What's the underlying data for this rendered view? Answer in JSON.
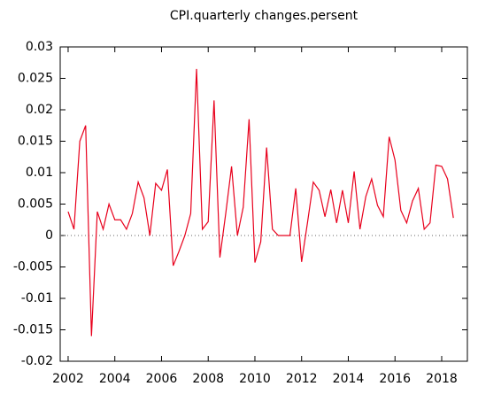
{
  "chart_data": {
    "type": "line",
    "title": "CPI.quarterly changes.persent",
    "x": [
      2002,
      2002.25,
      2002.5,
      2002.75,
      2003,
      2003.25,
      2003.5,
      2003.75,
      2004,
      2004.25,
      2004.5,
      2004.75,
      2005,
      2005.25,
      2005.5,
      2005.75,
      2006,
      2006.25,
      2006.5,
      2006.75,
      2007,
      2007.25,
      2007.5,
      2007.75,
      2008,
      2008.25,
      2008.5,
      2008.75,
      2009,
      2009.25,
      2009.5,
      2009.75,
      2010,
      2010.25,
      2010.5,
      2010.75,
      2011,
      2011.25,
      2011.5,
      2011.75,
      2012,
      2012.25,
      2012.5,
      2012.75,
      2013,
      2013.25,
      2013.5,
      2013.75,
      2014,
      2014.25,
      2014.5,
      2014.75,
      2015,
      2015.25,
      2015.5,
      2015.75,
      2016,
      2016.25,
      2016.5,
      2016.75,
      2017,
      2017.25,
      2017.5,
      2017.75,
      2018,
      2018.25,
      2018.5
    ],
    "series": [
      {
        "color": "#e8001c",
        "values": [
          0.0038,
          0.001,
          0.015,
          0.0175,
          -0.016,
          0.0038,
          0.001,
          0.005,
          0.0025,
          0.0025,
          0.001,
          0.0035,
          0.0085,
          0.006,
          0.0,
          0.0083,
          0.0072,
          0.0105,
          -0.0048,
          -0.0025,
          0.0,
          0.0035,
          0.0265,
          0.001,
          0.0022,
          0.0215,
          -0.0035,
          0.0035,
          0.011,
          0.0,
          0.0045,
          0.0185,
          -0.0043,
          -0.001,
          0.014,
          0.001,
          0.0,
          0.0,
          0.0,
          0.0075,
          -0.0042,
          0.002,
          0.0085,
          0.0072,
          0.003,
          0.0073,
          0.002,
          0.0072,
          0.002,
          0.0102,
          0.001,
          0.0062,
          0.009,
          0.0048,
          0.003,
          0.0157,
          0.012,
          0.004,
          0.002,
          0.0055,
          0.0075,
          0.001,
          0.002,
          0.0112,
          0.011,
          0.009,
          0.0028
        ]
      }
    ],
    "xlim": [
      2001.66,
      2019.1
    ],
    "xticks": [
      2002,
      2004,
      2006,
      2008,
      2010,
      2012,
      2014,
      2016,
      2018
    ],
    "ylim": [
      -0.02,
      0.03
    ],
    "yticks": [
      -0.02,
      -0.015,
      -0.01,
      -0.005,
      0,
      0.005,
      0.01,
      0.015,
      0.02,
      0.025,
      0.03
    ],
    "zero_line": true
  }
}
